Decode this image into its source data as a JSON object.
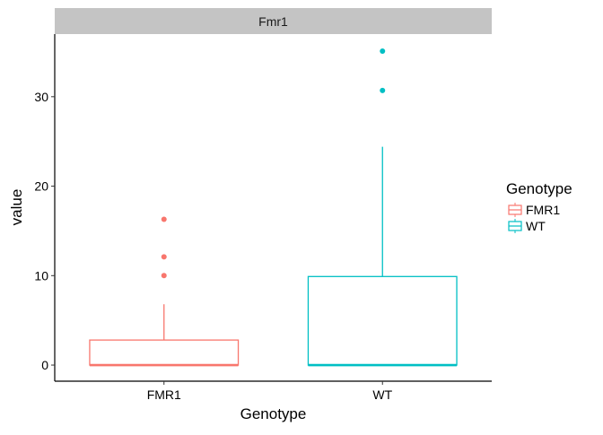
{
  "chart_data": {
    "type": "boxplot",
    "facet_label": "Fmr1",
    "xlabel": "Genotype",
    "ylabel": "value",
    "categories": [
      "FMR1",
      "WT"
    ],
    "ylim": [
      -1.8,
      37.0
    ],
    "y_ticks": [
      0,
      10,
      20,
      30
    ],
    "grid": false,
    "legend": {
      "title": "Genotype",
      "placement": "right",
      "entries": [
        "FMR1",
        "WT"
      ]
    },
    "colors": {
      "FMR1": "#F8766D",
      "WT": "#00BFC4",
      "strip_background": "#C4C4C4"
    },
    "boxes": [
      {
        "category": "FMR1",
        "min": 0,
        "q1": 0,
        "median": 0,
        "q3": 2.8,
        "max": 6.8,
        "outliers": [
          10.0,
          12.1,
          16.3
        ]
      },
      {
        "category": "WT",
        "min": 0,
        "q1": 0,
        "median": 0,
        "q3": 9.9,
        "max": 24.4,
        "outliers": [
          30.7,
          35.1
        ]
      }
    ]
  }
}
